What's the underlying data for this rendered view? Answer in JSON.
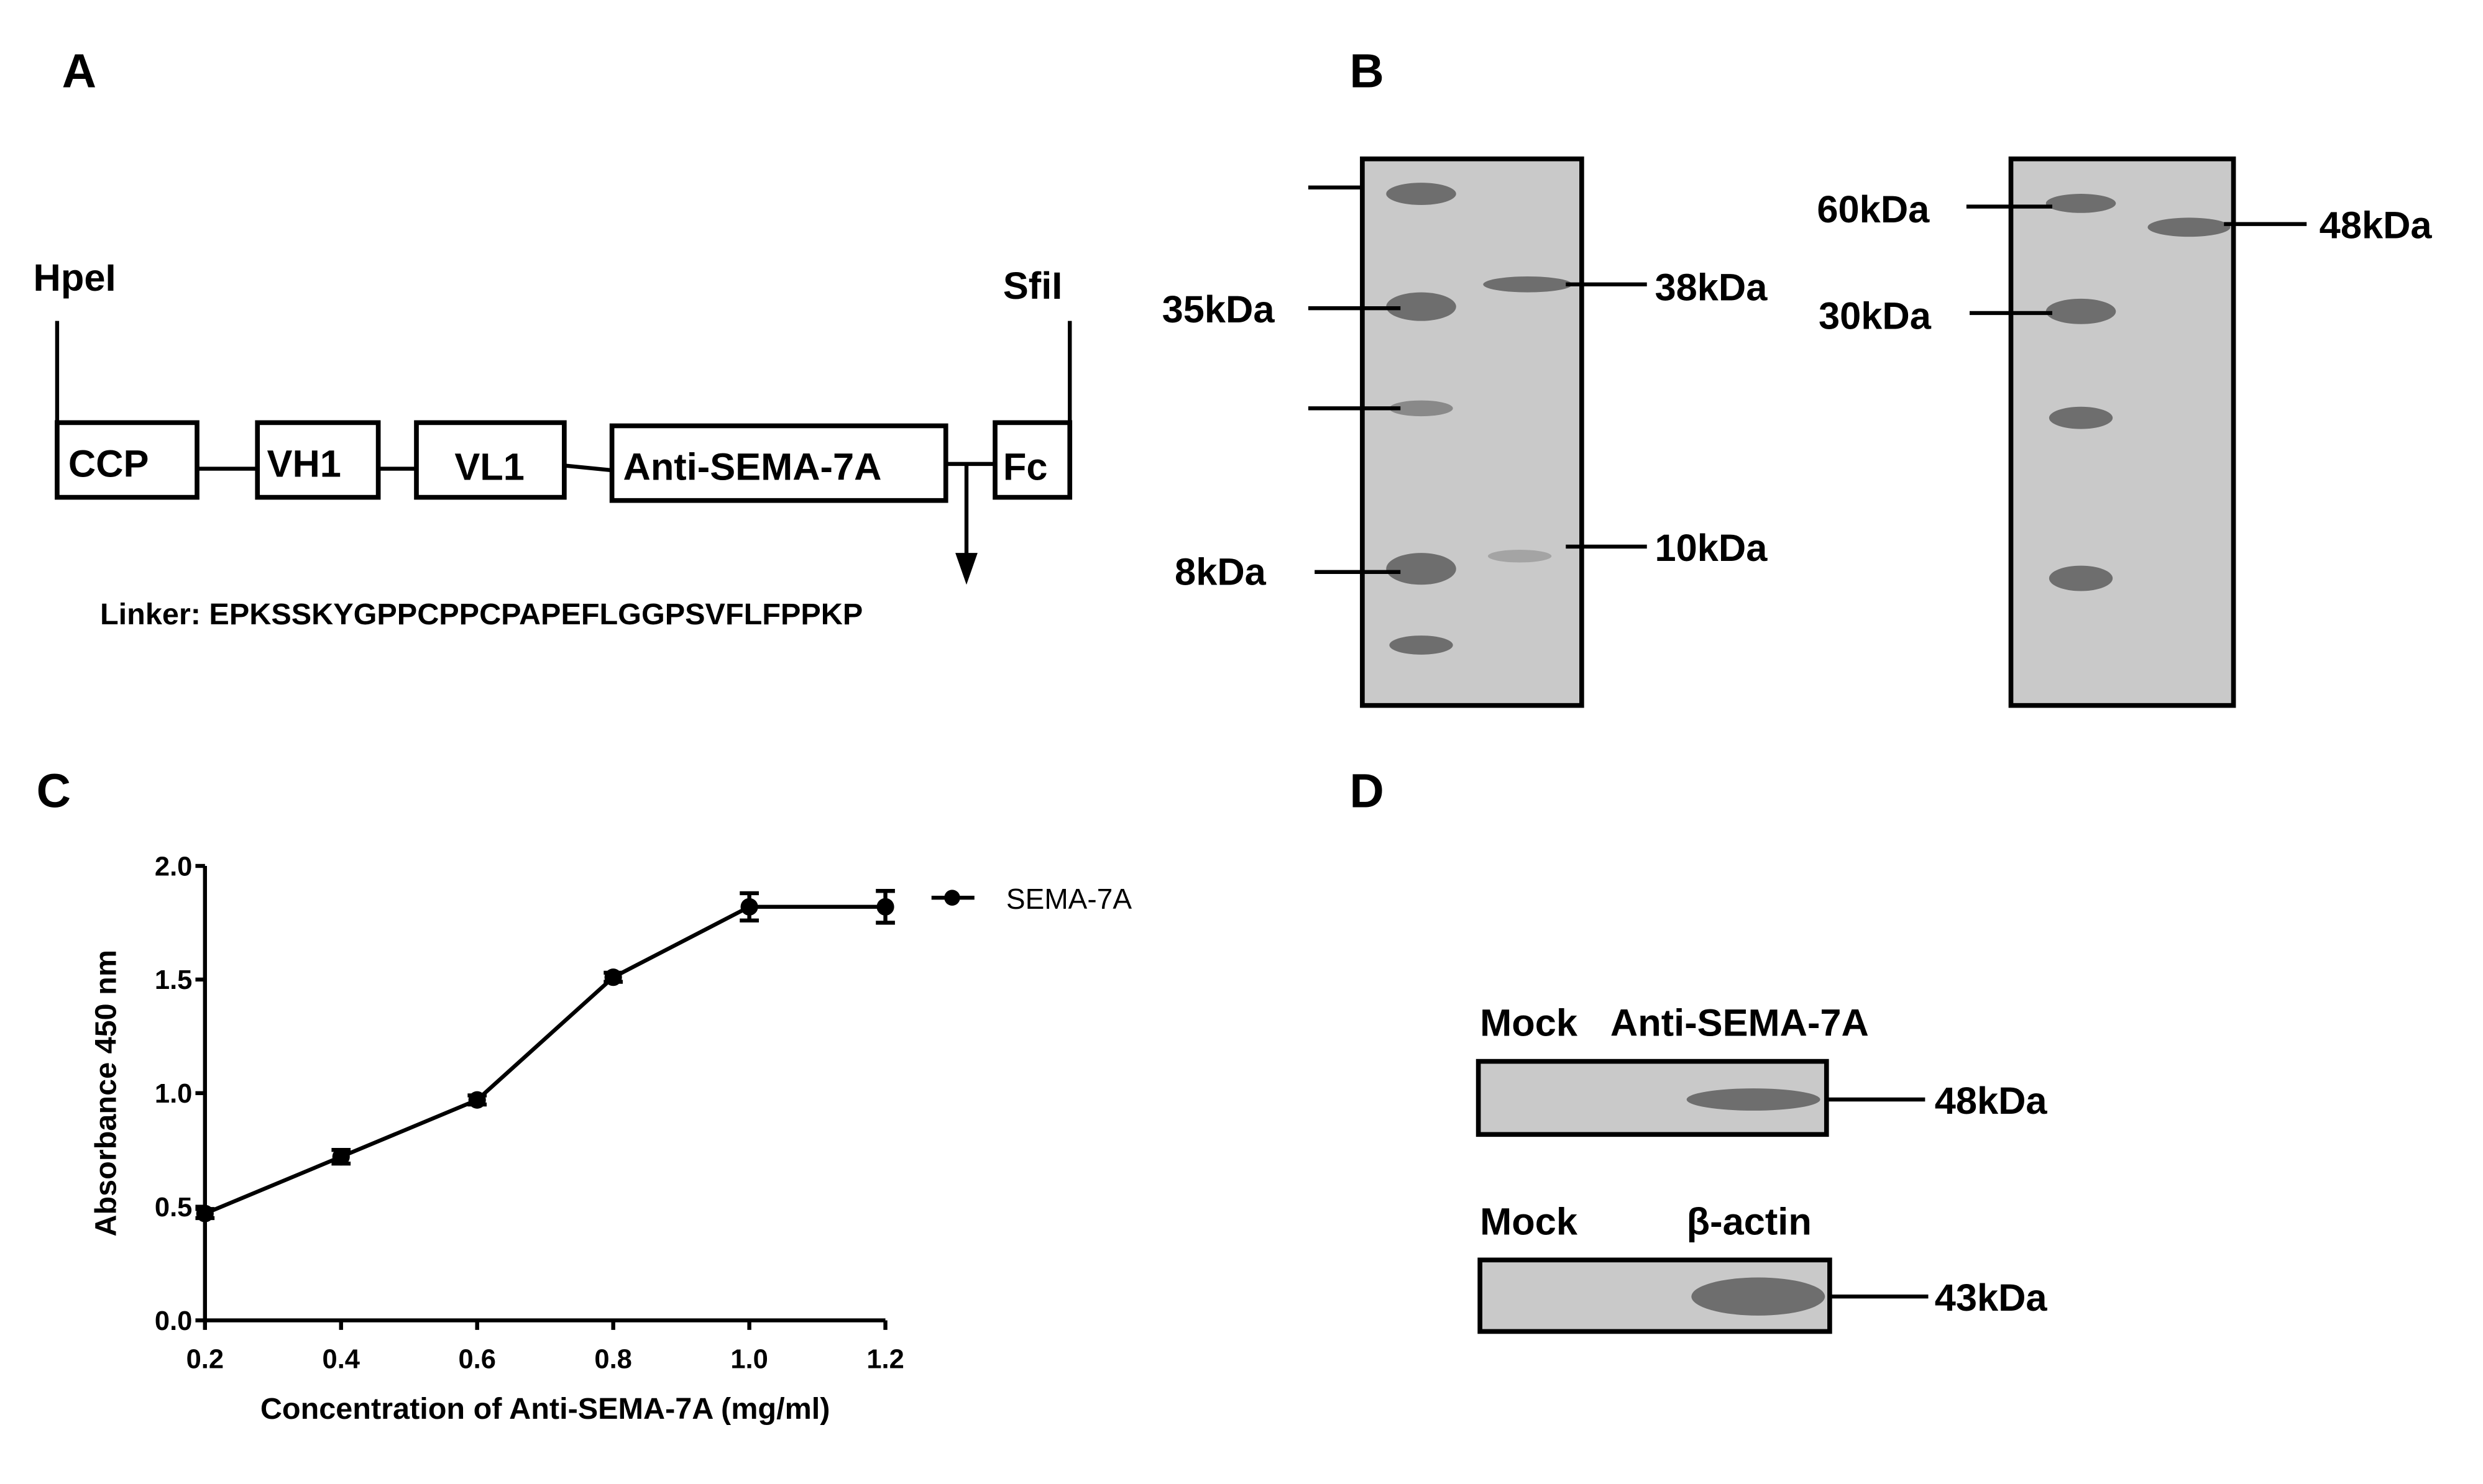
{
  "panels": {
    "a": "A",
    "b": "B",
    "c": "C",
    "d": "D"
  },
  "panel_a": {
    "site_left": "HpeI",
    "site_right": "SfiI",
    "domains": [
      "CCP",
      "VH1",
      "VL1",
      "Anti-SEMA-7A",
      "Fc"
    ],
    "linker": "Linker: EPKSSKYGPPCPPCPAPEFLGGPSVFLFPPKP"
  },
  "panel_b": {
    "gel1_markers": [
      "35kDa",
      "8kDa"
    ],
    "gel1_bands": [
      "38kDa",
      "10kDa"
    ],
    "gel2_markers": [
      "60kDa",
      "30kDa"
    ],
    "gel2_bands": [
      "48kDa"
    ]
  },
  "panel_d": {
    "blot1_lanes": [
      "Mock",
      "Anti-SEMA-7A"
    ],
    "blot1_size": "48kDa",
    "blot2_lanes": [
      "Mock",
      "β-actin"
    ],
    "blot2_size": "43kDa"
  },
  "chart_data": {
    "type": "line",
    "xlabel": "Concentration of Anti-SEMA-7A (mg/ml)",
    "ylabel": "Absorbance 450 nm",
    "xlim": [
      0.2,
      1.2
    ],
    "ylim": [
      0,
      2.0
    ],
    "xticks": [
      "0.2",
      "0.4",
      "0.6",
      "0.8",
      "1.0",
      "1.2"
    ],
    "yticks": [
      "0.0",
      "0.5",
      "1.0",
      "1.5",
      "2.0"
    ],
    "legend": "right",
    "grid": false,
    "series": [
      {
        "name": "SEMA-7A",
        "x": [
          0.2,
          0.4,
          0.6,
          0.8,
          1.0,
          1.2
        ],
        "y": [
          0.47,
          0.72,
          0.97,
          1.51,
          1.82,
          1.82
        ],
        "error": [
          0.02,
          0.03,
          0.02,
          0.02,
          0.06,
          0.07
        ]
      }
    ]
  }
}
